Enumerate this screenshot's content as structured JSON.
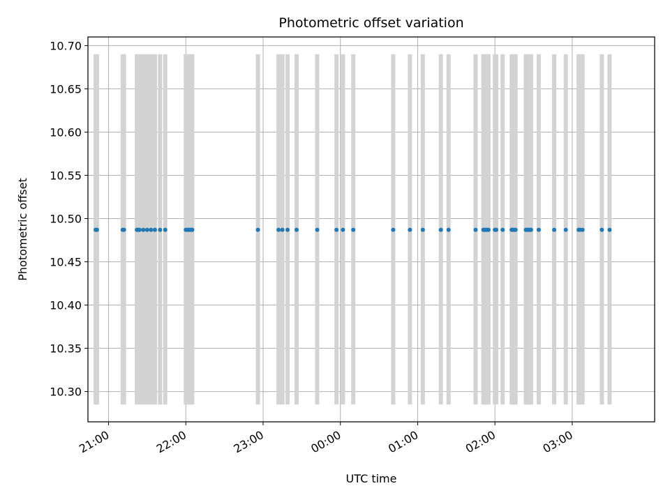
{
  "chart_data": {
    "type": "scatter",
    "title": "Photometric offset variation",
    "xlabel": "UTC time",
    "ylabel": "Photometric offset",
    "xlim": [
      "20:44",
      "04:04"
    ],
    "ylim": [
      10.265,
      10.71
    ],
    "x_ticks": [
      "21:00",
      "22:00",
      "23:00",
      "00:00",
      "01:00",
      "02:00",
      "03:00"
    ],
    "y_ticks": [
      "10.30",
      "10.35",
      "10.40",
      "10.45",
      "10.50",
      "10.55",
      "10.60",
      "10.65",
      "10.70"
    ],
    "grid": true,
    "point_color": "#1f77b4",
    "band_color": "#d3d3d3",
    "bands": {
      "y_range": [
        10.285,
        10.69
      ],
      "times": [
        "20:50",
        "20:51",
        "21:11",
        "21:12",
        "21:22",
        "21:23",
        "21:24",
        "21:27",
        "21:30",
        "21:33",
        "21:36",
        "21:40",
        "21:44",
        "22:00",
        "22:01",
        "22:02",
        "22:03",
        "22:04",
        "22:05",
        "22:56",
        "23:12",
        "23:15",
        "23:19",
        "23:26",
        "23:42",
        "23:57",
        "24:02",
        "24:10",
        "24:41",
        "24:54",
        "25:04",
        "25:18",
        "25:24",
        "25:45",
        "25:51",
        "25:52",
        "25:53",
        "25:54",
        "25:55",
        "26:00",
        "26:01",
        "26:06",
        "26:13",
        "26:14",
        "26:15",
        "26:16",
        "26:24",
        "26:25",
        "26:26",
        "26:27",
        "26:28",
        "26:34",
        "26:46",
        "26:55",
        "27:05",
        "27:06",
        "27:08",
        "27:23",
        "27:29"
      ]
    },
    "series": [
      {
        "x": [
          "20:50",
          "20:51",
          "21:11",
          "21:12",
          "21:22",
          "21:23",
          "21:24",
          "21:27",
          "21:30",
          "21:33",
          "21:36",
          "21:40",
          "21:44",
          "22:00",
          "22:01",
          "22:02",
          "22:03",
          "22:04",
          "22:05",
          "22:56",
          "23:12",
          "23:15",
          "23:19",
          "23:26",
          "23:42",
          "23:57",
          "24:02",
          "24:10",
          "24:41",
          "24:54",
          "25:04",
          "25:18",
          "25:24",
          "25:45",
          "25:51",
          "25:52",
          "25:53",
          "25:54",
          "25:55",
          "26:00",
          "26:01",
          "26:06",
          "26:13",
          "26:14",
          "26:15",
          "26:16",
          "26:24",
          "26:25",
          "26:26",
          "26:27",
          "26:28",
          "26:34",
          "26:46",
          "26:55",
          "27:05",
          "27:06",
          "27:08",
          "27:23",
          "27:29"
        ],
        "y": 10.487
      }
    ]
  }
}
